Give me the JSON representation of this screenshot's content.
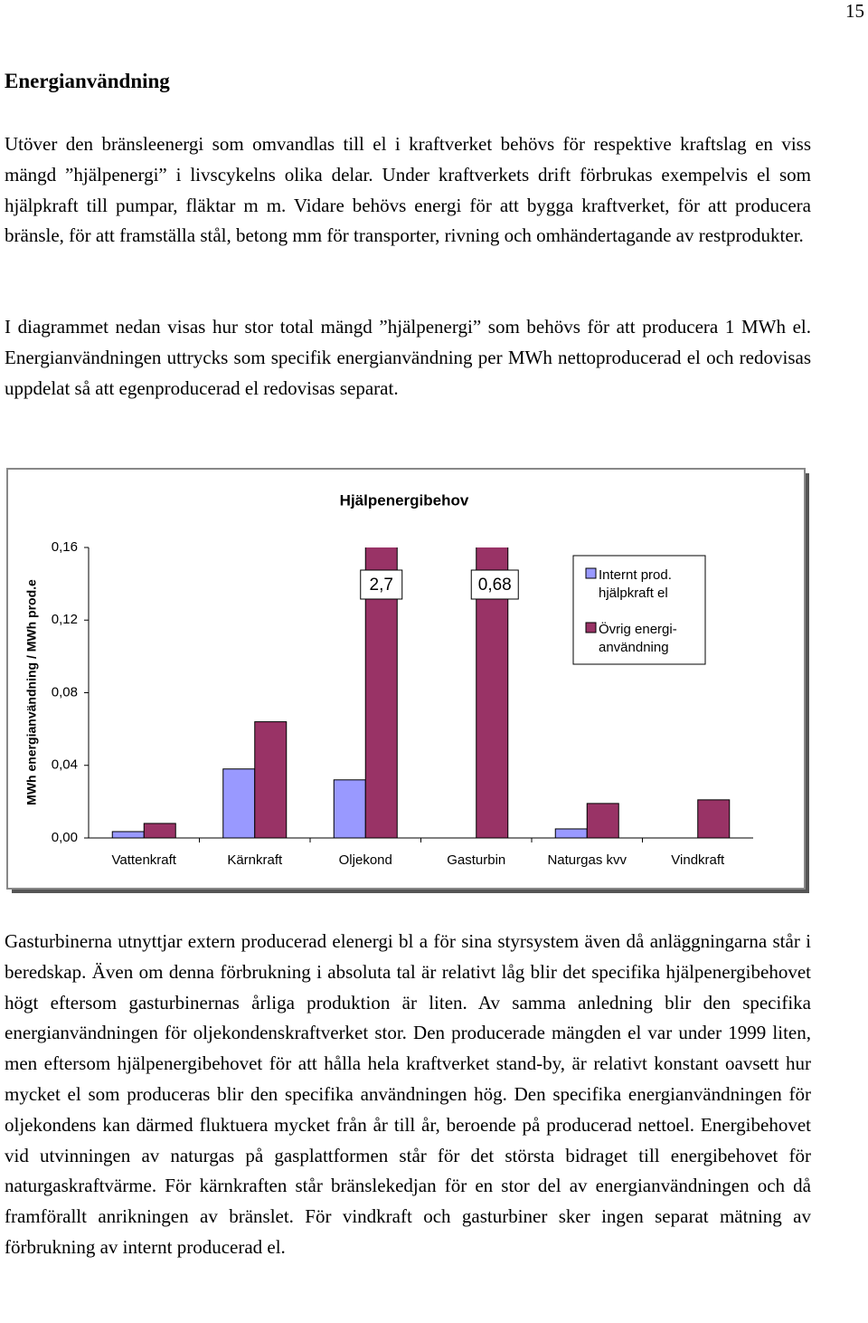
{
  "page_number": "15",
  "heading": "Energianvändning",
  "paragraphs": [
    "Utöver den bränsleenergi som omvandlas till el i kraftverket behövs för respektive kraftslag en viss mängd ”hjälpenergi” i livscykelns olika delar. Under kraftverkets drift förbrukas exempelvis el som hjälpkraft till pumpar, fläktar m m. Vidare behövs energi för att bygga kraftverket, för att producera bränsle, för att framställa stål, betong mm för transporter, rivning och omhändertagande av restprodukter.",
    "I diagrammet nedan visas hur stor total mängd ”hjälpenergi” som behövs för att producera 1 MWh el. Energianvändningen uttrycks som specifik energianvändning per MWh nettoproducerad el och redovisas uppdelat så att egenproducerad el redovisas separat."
  ],
  "chart_data": {
    "type": "bar",
    "title": "Hjälpenergibehov",
    "y_label": "MWh energianvändning / MWh prod.e",
    "categories": [
      "Vattenkraft",
      "Kärnkraft",
      "Oljekond",
      "Gasturbin",
      "Naturgas kvv",
      "Vindkraft"
    ],
    "series": [
      {
        "name": "Internt prod. hjälpkraft el",
        "color": "#9999ff",
        "values": [
          0.0035,
          0.038,
          0.032,
          null,
          0.005,
          null
        ]
      },
      {
        "name": "Övrig energi- användning",
        "color": "#993366",
        "values": [
          0.008,
          0.064,
          2.7,
          0.68,
          0.019,
          0.021
        ],
        "value_labels": [
          null,
          null,
          "2,7",
          "0,68",
          null,
          null
        ]
      }
    ],
    "ylim": [
      0,
      0.16
    ],
    "yticks": [
      {
        "value": 0,
        "label": "0,00"
      },
      {
        "value": 0.04,
        "label": "0,04"
      },
      {
        "value": 0.08,
        "label": "0,08"
      },
      {
        "value": 0.12,
        "label": "0,12"
      },
      {
        "value": 0.16,
        "label": "0,16"
      }
    ],
    "grid": false
  },
  "after_paragraph": "Gasturbinerna utnyttjar extern producerad elenergi bl a för sina styrsystem även då anläggningarna står i beredskap. Även om denna förbrukning i absoluta tal är relativt låg blir det specifika hjälpenergibehovet högt eftersom gasturbinernas årliga produktion är liten. Av samma anledning blir den specifika energianvändningen för oljekondenskraftverket stor. Den producerade mängden el var under 1999 liten, men eftersom hjälpenergibehovet för att hålla hela kraftverket stand-by, är relativt konstant oavsett hur mycket el som produceras blir den specifika användningen hög. Den specifika energianvändningen för oljekondens kan därmed fluktuera mycket från år till år, beroende på producerad nettoel. Energibehovet vid utvinningen av naturgas på gasplattformen står för det största bidraget till energibehovet för naturgaskraftvärme. För kärnkraften står bränslekedjan för en stor del av energianvändningen och då framförallt anrikningen av bränslet. För vindkraft och gasturbiner sker ingen separat mätning av förbrukning av internt producerad el."
}
